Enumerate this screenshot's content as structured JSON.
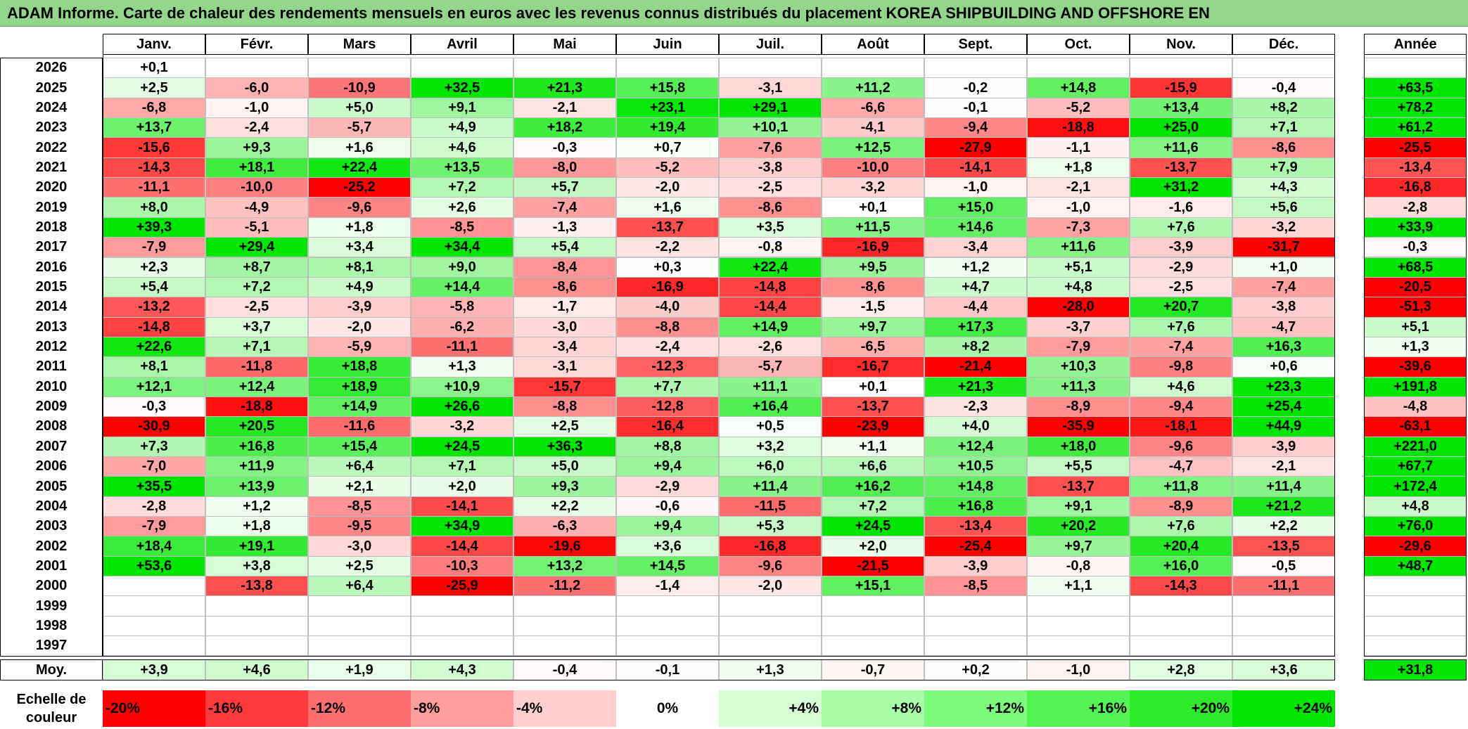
{
  "title": "ADAM Informe. Carte de chaleur des rendements mensuels en euros avec les revenus connus distribués du placement KOREA SHIPBUILDING AND OFFSHORE EN",
  "chart_data": {
    "type": "heatmap",
    "columns": [
      "Janv.",
      "Févr.",
      "Mars",
      "Avril",
      "Mai",
      "Juin",
      "Juil.",
      "Août",
      "Sept.",
      "Oct.",
      "Nov.",
      "Déc."
    ],
    "year_header": "Année",
    "rows": [
      {
        "year": "2026",
        "months": [
          "+0,1",
          "",
          "",
          "",
          "",
          "",
          "",
          "",
          "",
          "",
          "",
          ""
        ],
        "annual": ""
      },
      {
        "year": "2025",
        "months": [
          "+2,5",
          "-6,0",
          "-10,9",
          "+32,5",
          "+21,3",
          "+15,8",
          "-3,1",
          "+11,2",
          "-0,2",
          "+14,8",
          "-15,9",
          "-0,4"
        ],
        "annual": "+63,5"
      },
      {
        "year": "2024",
        "months": [
          "-6,8",
          "-1,0",
          "+5,0",
          "+9,1",
          "-2,1",
          "+23,1",
          "+29,1",
          "-6,6",
          "-0,1",
          "-5,2",
          "+13,4",
          "+8,2"
        ],
        "annual": "+78,2"
      },
      {
        "year": "2023",
        "months": [
          "+13,7",
          "-2,4",
          "-5,7",
          "+4,9",
          "+18,2",
          "+19,4",
          "+10,1",
          "-4,1",
          "-9,4",
          "-18,8",
          "+25,0",
          "+7,1"
        ],
        "annual": "+61,2"
      },
      {
        "year": "2022",
        "months": [
          "-15,6",
          "+9,3",
          "+1,6",
          "+4,6",
          "-0,3",
          "+0,7",
          "-7,6",
          "+12,5",
          "-27,9",
          "-1,1",
          "+11,6",
          "-8,6"
        ],
        "annual": "-25,5"
      },
      {
        "year": "2021",
        "months": [
          "-14,3",
          "+18,1",
          "+22,4",
          "+13,5",
          "-8,0",
          "-5,2",
          "-3,8",
          "-10,0",
          "-14,1",
          "+1,8",
          "-13,7",
          "+7,9"
        ],
        "annual": "-13,4"
      },
      {
        "year": "2020",
        "months": [
          "-11,1",
          "-10,0",
          "-25,2",
          "+7,2",
          "+5,7",
          "-2,0",
          "-2,5",
          "-3,2",
          "-1,0",
          "-2,1",
          "+31,2",
          "+4,3"
        ],
        "annual": "-16,8"
      },
      {
        "year": "2019",
        "months": [
          "+8,0",
          "-4,9",
          "-9,6",
          "+2,6",
          "-7,4",
          "+1,6",
          "-8,6",
          "+0,1",
          "+15,0",
          "-1,0",
          "-1,6",
          "+5,6"
        ],
        "annual": "-2,8"
      },
      {
        "year": "2018",
        "months": [
          "+39,3",
          "-5,1",
          "+1,8",
          "-8,5",
          "-1,3",
          "-13,7",
          "+3,5",
          "+11,5",
          "+14,6",
          "-7,3",
          "+7,6",
          "-3,2"
        ],
        "annual": "+33,9"
      },
      {
        "year": "2017",
        "months": [
          "-7,9",
          "+29,4",
          "+3,4",
          "+34,4",
          "+5,4",
          "-2,2",
          "-0,8",
          "-16,9",
          "-3,4",
          "+11,6",
          "-3,9",
          "-31,7"
        ],
        "annual": "-0,3"
      },
      {
        "year": "2016",
        "months": [
          "+2,3",
          "+8,7",
          "+8,1",
          "+9,0",
          "-8,4",
          "+0,3",
          "+22,4",
          "+9,5",
          "+1,2",
          "+5,1",
          "-2,9",
          "+1,0"
        ],
        "annual": "+68,5"
      },
      {
        "year": "2015",
        "months": [
          "+5,4",
          "+7,2",
          "+4,9",
          "+14,4",
          "-8,6",
          "-16,9",
          "-14,8",
          "-8,6",
          "+4,7",
          "+4,8",
          "-2,5",
          "-7,4"
        ],
        "annual": "-20,5"
      },
      {
        "year": "2014",
        "months": [
          "-13,2",
          "-2,5",
          "-3,9",
          "-5,8",
          "-1,7",
          "-4,0",
          "-14,4",
          "-1,5",
          "-4,4",
          "-28,0",
          "+20,7",
          "-3,8"
        ],
        "annual": "-51,3"
      },
      {
        "year": "2013",
        "months": [
          "-14,8",
          "+3,7",
          "-2,0",
          "-6,2",
          "-3,0",
          "-8,8",
          "+14,9",
          "+9,7",
          "+17,3",
          "-3,7",
          "+7,6",
          "-4,7"
        ],
        "annual": "+5,1"
      },
      {
        "year": "2012",
        "months": [
          "+22,6",
          "+7,1",
          "-5,9",
          "-11,1",
          "-3,4",
          "-2,4",
          "-2,6",
          "-6,5",
          "+8,2",
          "-7,9",
          "-7,4",
          "+16,3"
        ],
        "annual": "+1,3"
      },
      {
        "year": "2011",
        "months": [
          "+8,1",
          "-11,8",
          "+18,8",
          "+1,3",
          "-3,1",
          "-12,3",
          "-5,7",
          "-16,7",
          "-21,4",
          "+10,3",
          "-9,8",
          "+0,6"
        ],
        "annual": "-39,6"
      },
      {
        "year": "2010",
        "months": [
          "+12,1",
          "+12,4",
          "+18,9",
          "+10,9",
          "-15,7",
          "+7,7",
          "+11,1",
          "+0,1",
          "+21,3",
          "+11,3",
          "+4,6",
          "+23,3"
        ],
        "annual": "+191,8"
      },
      {
        "year": "2009",
        "months": [
          "-0,3",
          "-18,8",
          "+14,9",
          "+26,6",
          "-8,8",
          "-12,8",
          "+16,4",
          "-13,7",
          "-2,3",
          "-8,9",
          "-9,4",
          "+25,4"
        ],
        "annual": "-4,8"
      },
      {
        "year": "2008",
        "months": [
          "-30,9",
          "+20,5",
          "-11,6",
          "-3,2",
          "+2,5",
          "-16,4",
          "+0,5",
          "-23,9",
          "+4,0",
          "-35,9",
          "-18,1",
          "+44,9"
        ],
        "annual": "-63,1"
      },
      {
        "year": "2007",
        "months": [
          "+7,3",
          "+16,8",
          "+15,4",
          "+24,5",
          "+36,3",
          "+8,8",
          "+3,2",
          "+1,1",
          "+12,4",
          "+18,0",
          "-9,6",
          "-3,9"
        ],
        "annual": "+221,0"
      },
      {
        "year": "2006",
        "months": [
          "-7,0",
          "+11,9",
          "+6,4",
          "+7,1",
          "+5,0",
          "+9,4",
          "+6,0",
          "+6,6",
          "+10,5",
          "+5,5",
          "-4,7",
          "-2,1"
        ],
        "annual": "+67,7"
      },
      {
        "year": "2005",
        "months": [
          "+35,5",
          "+13,9",
          "+2,1",
          "+2,0",
          "+9,3",
          "-2,9",
          "+11,4",
          "+16,2",
          "+14,8",
          "-13,7",
          "+11,8",
          "+11,4"
        ],
        "annual": "+172,4"
      },
      {
        "year": "2004",
        "months": [
          "-2,8",
          "+1,2",
          "-8,5",
          "-14,1",
          "+2,2",
          "-0,6",
          "-11,5",
          "+7,2",
          "+16,8",
          "+9,1",
          "-8,9",
          "+21,2"
        ],
        "annual": "+4,8"
      },
      {
        "year": "2003",
        "months": [
          "-7,9",
          "+1,8",
          "-9,5",
          "+34,9",
          "-6,3",
          "+9,4",
          "+5,3",
          "+24,5",
          "-13,4",
          "+20,2",
          "+7,6",
          "+2,2"
        ],
        "annual": "+76,0"
      },
      {
        "year": "2002",
        "months": [
          "+18,4",
          "+19,1",
          "-3,0",
          "-14,4",
          "-19,6",
          "+3,6",
          "-16,8",
          "+2,0",
          "-25,4",
          "+9,7",
          "+20,4",
          "-13,5"
        ],
        "annual": "-29,6"
      },
      {
        "year": "2001",
        "months": [
          "+53,6",
          "+3,8",
          "+2,5",
          "-10,3",
          "+13,2",
          "+14,5",
          "-9,6",
          "-21,5",
          "-3,9",
          "-0,8",
          "+16,0",
          "-0,5"
        ],
        "annual": "+48,7"
      },
      {
        "year": "2000",
        "months": [
          "",
          "-13,8",
          "+6,4",
          "-25,9",
          "-11,2",
          "-1,4",
          "-2,0",
          "+15,1",
          "-8,5",
          "+1,1",
          "-14,3",
          "-11,1"
        ],
        "annual": ""
      },
      {
        "year": "1999",
        "months": [
          "",
          "",
          "",
          "",
          "",
          "",
          "",
          "",
          "",
          "",
          "",
          ""
        ],
        "annual": ""
      },
      {
        "year": "1998",
        "months": [
          "",
          "",
          "",
          "",
          "",
          "",
          "",
          "",
          "",
          "",
          "",
          ""
        ],
        "annual": ""
      },
      {
        "year": "1997",
        "months": [
          "",
          "",
          "",
          "",
          "",
          "",
          "",
          "",
          "",
          "",
          "",
          ""
        ],
        "annual": ""
      }
    ],
    "average": {
      "label": "Moy.",
      "months": [
        "+3,9",
        "+4,6",
        "+1,9",
        "+4,3",
        "-0,4",
        "-0,1",
        "+1,3",
        "-0,7",
        "+0,2",
        "-1,0",
        "+2,8",
        "+3,6"
      ],
      "annual": "+31,8"
    },
    "color_scale": {
      "label": "Echelle de couleur",
      "steps": [
        {
          "label": "-20%",
          "color": "#ff0000"
        },
        {
          "label": "-16%",
          "color": "#ff3a3a"
        },
        {
          "label": "-12%",
          "color": "#ff6e6e"
        },
        {
          "label": "-8%",
          "color": "#ff9c9c"
        },
        {
          "label": "-4%",
          "color": "#ffcece"
        },
        {
          "label": "0%",
          "color": "#ffffff"
        },
        {
          "label": "+4%",
          "color": "#d4ffd4"
        },
        {
          "label": "+8%",
          "color": "#a8ffa8"
        },
        {
          "label": "+12%",
          "color": "#7cfa7c"
        },
        {
          "label": "+16%",
          "color": "#55f255"
        },
        {
          "label": "+20%",
          "color": "#2eeb2e"
        },
        {
          "label": "+24%",
          "color": "#00e600"
        }
      ]
    }
  }
}
